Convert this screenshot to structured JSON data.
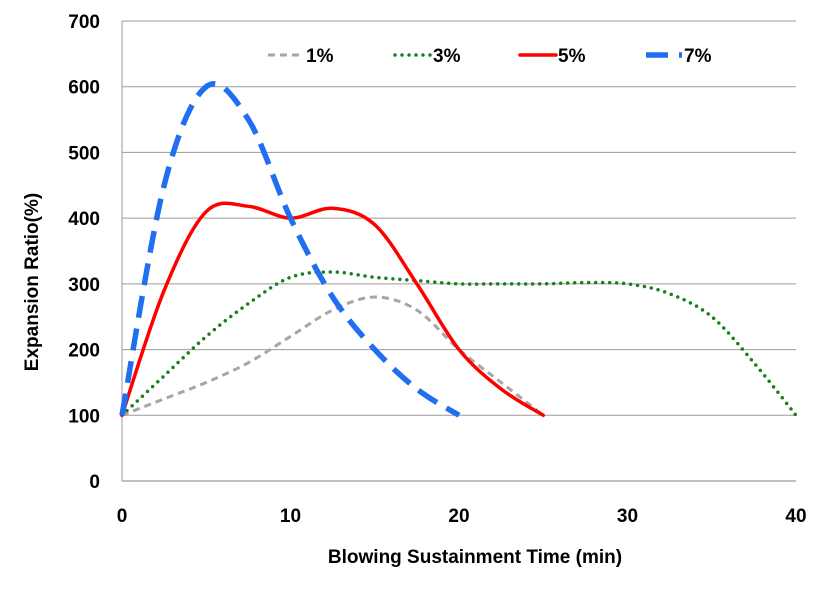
{
  "chart_data": {
    "type": "line",
    "title": "",
    "xlabel": "Blowing Sustainment Time (min)",
    "ylabel": "Expansion Ratio(%)",
    "xlim": [
      0,
      40
    ],
    "ylim": [
      0,
      700
    ],
    "xticks": [
      0,
      10,
      20,
      30,
      40
    ],
    "yticks": [
      0,
      100,
      200,
      300,
      400,
      500,
      600,
      700
    ],
    "grid": "horizontal",
    "legend_position": "top",
    "series": [
      {
        "name": "1%",
        "color": "#a6a6a6",
        "style": "dashed",
        "x": [
          0,
          2.5,
          5,
          7.5,
          10,
          12.5,
          15,
          17.5,
          20,
          22.5,
          25
        ],
        "y": [
          100,
          125,
          150,
          180,
          220,
          260,
          280,
          260,
          200,
          150,
          100
        ]
      },
      {
        "name": "3%",
        "color": "#1a7f1a",
        "style": "dotted",
        "x": [
          0,
          2.5,
          5,
          7.5,
          10,
          12.5,
          15,
          17.5,
          20,
          22.5,
          25,
          27.5,
          30,
          32.5,
          35,
          37.5,
          40
        ],
        "y": [
          100,
          160,
          220,
          270,
          310,
          318,
          310,
          305,
          300,
          300,
          300,
          302,
          300,
          285,
          250,
          180,
          100
        ]
      },
      {
        "name": "5%",
        "color": "#ff0000",
        "style": "solid",
        "x": [
          0,
          2.5,
          5,
          7.5,
          10,
          12.5,
          15,
          17.5,
          20,
          22.5,
          25
        ],
        "y": [
          100,
          290,
          410,
          418,
          400,
          415,
          390,
          300,
          200,
          140,
          100
        ]
      },
      {
        "name": "7%",
        "color": "#1f6ff0",
        "style": "longdash",
        "x": [
          0,
          2.5,
          5,
          7.5,
          10,
          12.5,
          15,
          17.5,
          20
        ],
        "y": [
          100,
          450,
          600,
          550,
          400,
          280,
          200,
          140,
          100
        ]
      }
    ]
  }
}
